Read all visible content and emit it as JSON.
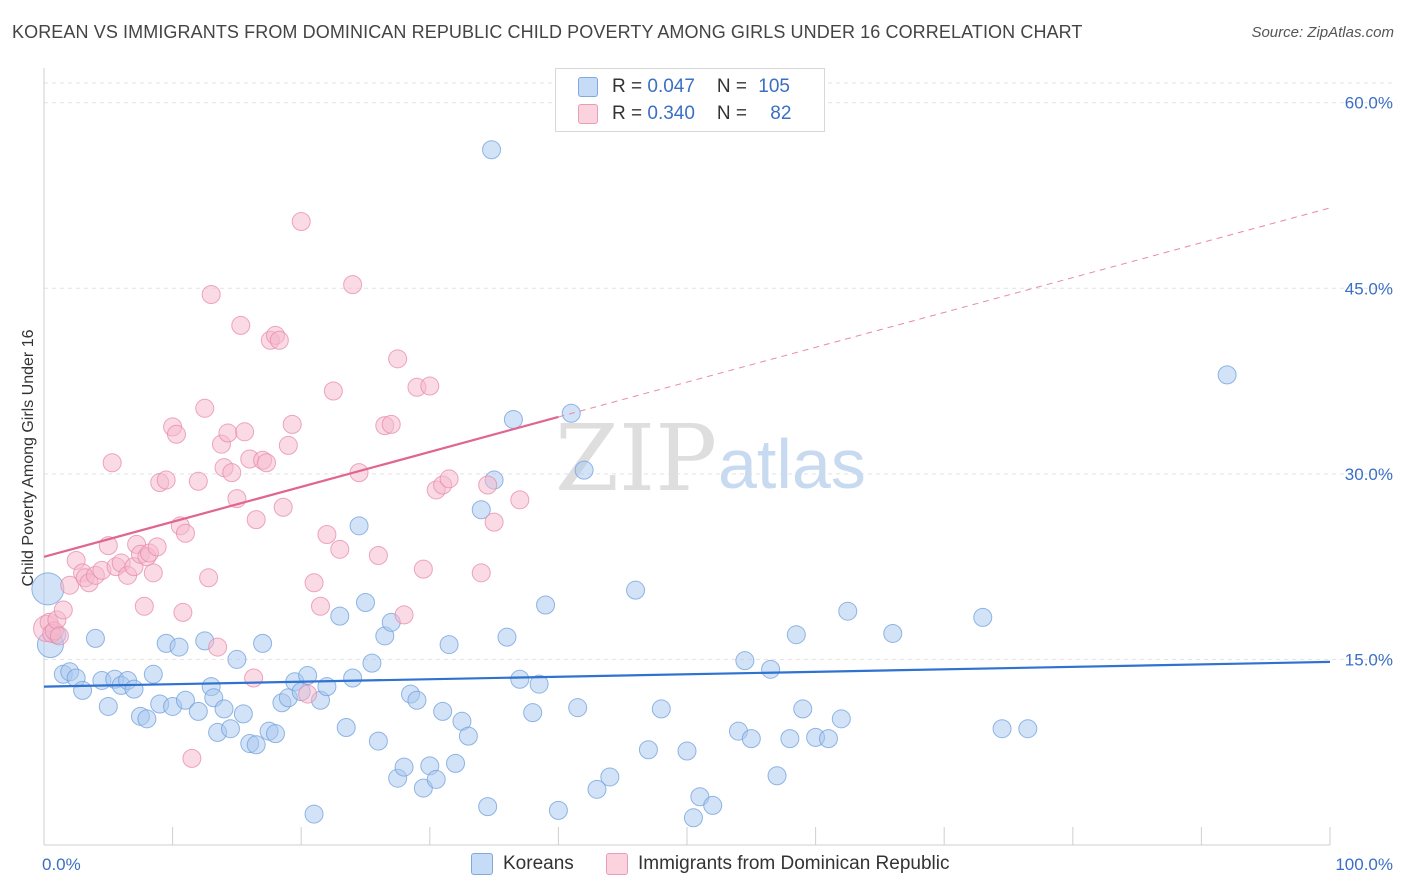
{
  "title": "KOREAN VS IMMIGRANTS FROM DOMINICAN REPUBLIC CHILD POVERTY AMONG GIRLS UNDER 16 CORRELATION CHART",
  "source": "Source: ZipAtlas.com",
  "legend": {
    "rows": [
      {
        "r_label": "R = ",
        "r_value": "0.047",
        "n_label": "N = ",
        "n_value": "105",
        "color": "#a8c8f0"
      },
      {
        "r_label": "R = ",
        "r_value": "0.340",
        "n_label": "N = ",
        "n_value": "82",
        "color": "#f5b8cb"
      }
    ]
  },
  "bottom_legend": [
    {
      "label": "Koreans",
      "color": "#a8c8f0"
    },
    {
      "label": "Immigrants from Dominican Republic",
      "color": "#f5b8cb"
    }
  ],
  "watermark": {
    "zip": "ZIP",
    "atlas": "atlas"
  },
  "chart_data": {
    "type": "scatter",
    "ylabel": "Child Poverty Among Girls Under 16",
    "xlim": [
      0,
      100
    ],
    "ylim": [
      0,
      62
    ],
    "x_tick_labels": [
      "0.0%",
      "100.0%"
    ],
    "y_ticks": [
      15,
      30,
      45,
      60
    ],
    "y_tick_labels": [
      "15.0%",
      "30.0%",
      "45.0%",
      "60.0%"
    ],
    "grid": true,
    "series": [
      {
        "name": "Koreans",
        "color": "#6f9fdc",
        "fill": "#a8c8f0",
        "trend": {
          "x": [
            0,
            100
          ],
          "y": [
            12.8,
            14.8
          ],
          "dashed_to": null
        },
        "points": [
          [
            0.3,
            20.7
          ],
          [
            0.5,
            16.2
          ],
          [
            1,
            17.0
          ],
          [
            1.5,
            13.8
          ],
          [
            2,
            14.0
          ],
          [
            2.5,
            13.5
          ],
          [
            3,
            12.5
          ],
          [
            4,
            16.7
          ],
          [
            4.5,
            13.3
          ],
          [
            5,
            11.2
          ],
          [
            5.5,
            13.4
          ],
          [
            6,
            12.9
          ],
          [
            6.5,
            13.3
          ],
          [
            7,
            12.6
          ],
          [
            7.5,
            10.4
          ],
          [
            8,
            10.2
          ],
          [
            8.5,
            13.8
          ],
          [
            9,
            11.4
          ],
          [
            9.5,
            16.3
          ],
          [
            10,
            11.2
          ],
          [
            10.5,
            16.0
          ],
          [
            11,
            11.7
          ],
          [
            12,
            10.8
          ],
          [
            12.5,
            16.5
          ],
          [
            13,
            12.8
          ],
          [
            13.2,
            11.9
          ],
          [
            13.5,
            9.1
          ],
          [
            14,
            11.0
          ],
          [
            14.5,
            9.4
          ],
          [
            15,
            15.0
          ],
          [
            15.5,
            10.6
          ],
          [
            16,
            8.2
          ],
          [
            16.5,
            8.1
          ],
          [
            17,
            16.3
          ],
          [
            17.5,
            9.2
          ],
          [
            18,
            9.0
          ],
          [
            18.5,
            11.5
          ],
          [
            19,
            11.9
          ],
          [
            19.5,
            13.2
          ],
          [
            20,
            12.4
          ],
          [
            20.5,
            13.7
          ],
          [
            21,
            2.5
          ],
          [
            21.5,
            11.7
          ],
          [
            22,
            12.8
          ],
          [
            23,
            18.5
          ],
          [
            23.5,
            9.5
          ],
          [
            24,
            13.5
          ],
          [
            24.5,
            25.8
          ],
          [
            25,
            19.6
          ],
          [
            25.5,
            14.7
          ],
          [
            26,
            8.4
          ],
          [
            26.5,
            16.9
          ],
          [
            27,
            18.0
          ],
          [
            27.5,
            5.4
          ],
          [
            28,
            6.3
          ],
          [
            28.5,
            12.2
          ],
          [
            29,
            11.7
          ],
          [
            29.5,
            4.6
          ],
          [
            30,
            6.4
          ],
          [
            30.5,
            5.3
          ],
          [
            31,
            10.8
          ],
          [
            31.5,
            16.2
          ],
          [
            32,
            6.6
          ],
          [
            32.5,
            10.0
          ],
          [
            33,
            8.8
          ],
          [
            34,
            27.1
          ],
          [
            34.5,
            3.1
          ],
          [
            34.8,
            56.2
          ],
          [
            35,
            29.5
          ],
          [
            36,
            16.8
          ],
          [
            36.5,
            34.4
          ],
          [
            37,
            13.4
          ],
          [
            38,
            10.7
          ],
          [
            38.5,
            13.0
          ],
          [
            39,
            19.4
          ],
          [
            40,
            2.8
          ],
          [
            41,
            34.9
          ],
          [
            41.5,
            11.1
          ],
          [
            42,
            30.3
          ],
          [
            43,
            4.5
          ],
          [
            44,
            5.5
          ],
          [
            46,
            20.6
          ],
          [
            47,
            7.7
          ],
          [
            48,
            11.0
          ],
          [
            50,
            7.6
          ],
          [
            50.5,
            2.2
          ],
          [
            51,
            3.9
          ],
          [
            52,
            3.2
          ],
          [
            54,
            9.2
          ],
          [
            54.5,
            14.9
          ],
          [
            55,
            8.6
          ],
          [
            56.5,
            14.2
          ],
          [
            57,
            5.6
          ],
          [
            58,
            8.6
          ],
          [
            58.5,
            17.0
          ],
          [
            59,
            11.0
          ],
          [
            60,
            8.7
          ],
          [
            61,
            8.6
          ],
          [
            62,
            10.2
          ],
          [
            62.5,
            18.9
          ],
          [
            66,
            17.1
          ],
          [
            73,
            18.4
          ],
          [
            74.5,
            9.4
          ],
          [
            76.5,
            9.4
          ],
          [
            92,
            38.0
          ]
        ]
      },
      {
        "name": "Immigrants from Dominican Republic",
        "color": "#e88aa8",
        "fill": "#f5b8cb",
        "trend": {
          "x": [
            0,
            40
          ],
          "y": [
            23.3,
            34.6
          ],
          "dashed_to": [
            100,
            51.5
          ]
        },
        "points": [
          [
            0.2,
            17.5
          ],
          [
            0.4,
            18.0
          ],
          [
            0.6,
            17.1
          ],
          [
            0.8,
            17.3
          ],
          [
            1,
            18.2
          ],
          [
            1.2,
            16.9
          ],
          [
            1.5,
            19.0
          ],
          [
            2,
            21.0
          ],
          [
            2.5,
            23.0
          ],
          [
            3,
            22.0
          ],
          [
            3.2,
            21.6
          ],
          [
            3.5,
            21.2
          ],
          [
            4,
            21.8
          ],
          [
            4.5,
            22.2
          ],
          [
            5,
            24.2
          ],
          [
            5.3,
            30.9
          ],
          [
            5.6,
            22.5
          ],
          [
            6,
            22.8
          ],
          [
            6.5,
            21.8
          ],
          [
            7,
            22.5
          ],
          [
            7.2,
            24.3
          ],
          [
            7.5,
            23.5
          ],
          [
            7.8,
            19.3
          ],
          [
            8,
            23.3
          ],
          [
            8.2,
            23.6
          ],
          [
            8.5,
            22.0
          ],
          [
            8.8,
            24.1
          ],
          [
            9,
            29.3
          ],
          [
            9.5,
            29.5
          ],
          [
            10,
            33.8
          ],
          [
            10.3,
            33.2
          ],
          [
            10.6,
            25.8
          ],
          [
            10.8,
            18.8
          ],
          [
            11,
            25.2
          ],
          [
            11.5,
            7.0
          ],
          [
            12,
            29.4
          ],
          [
            12.5,
            35.3
          ],
          [
            12.8,
            21.6
          ],
          [
            13,
            44.5
          ],
          [
            13.5,
            16.0
          ],
          [
            13.8,
            32.4
          ],
          [
            14,
            30.5
          ],
          [
            14.3,
            33.3
          ],
          [
            14.6,
            30.1
          ],
          [
            15,
            28.0
          ],
          [
            15.3,
            42.0
          ],
          [
            15.6,
            33.4
          ],
          [
            16,
            31.2
          ],
          [
            16.3,
            13.5
          ],
          [
            16.5,
            26.3
          ],
          [
            17,
            31.1
          ],
          [
            17.3,
            30.9
          ],
          [
            17.6,
            40.8
          ],
          [
            18,
            41.2
          ],
          [
            18.3,
            40.8
          ],
          [
            18.6,
            27.3
          ],
          [
            19,
            32.3
          ],
          [
            19.3,
            34.0
          ],
          [
            20,
            50.4
          ],
          [
            20.5,
            12.2
          ],
          [
            21,
            21.2
          ],
          [
            21.5,
            19.3
          ],
          [
            22,
            25.1
          ],
          [
            22.5,
            36.7
          ],
          [
            23,
            23.9
          ],
          [
            24,
            45.3
          ],
          [
            24.5,
            30.1
          ],
          [
            26,
            23.4
          ],
          [
            26.5,
            33.9
          ],
          [
            27,
            34.0
          ],
          [
            27.5,
            39.3
          ],
          [
            28,
            18.6
          ],
          [
            29,
            37.0
          ],
          [
            29.5,
            22.3
          ],
          [
            30,
            37.1
          ],
          [
            30.5,
            28.7
          ],
          [
            31,
            29.1
          ],
          [
            31.5,
            29.6
          ],
          [
            34,
            22.0
          ],
          [
            34.5,
            29.1
          ],
          [
            35,
            26.1
          ],
          [
            37,
            27.9
          ]
        ]
      }
    ]
  }
}
